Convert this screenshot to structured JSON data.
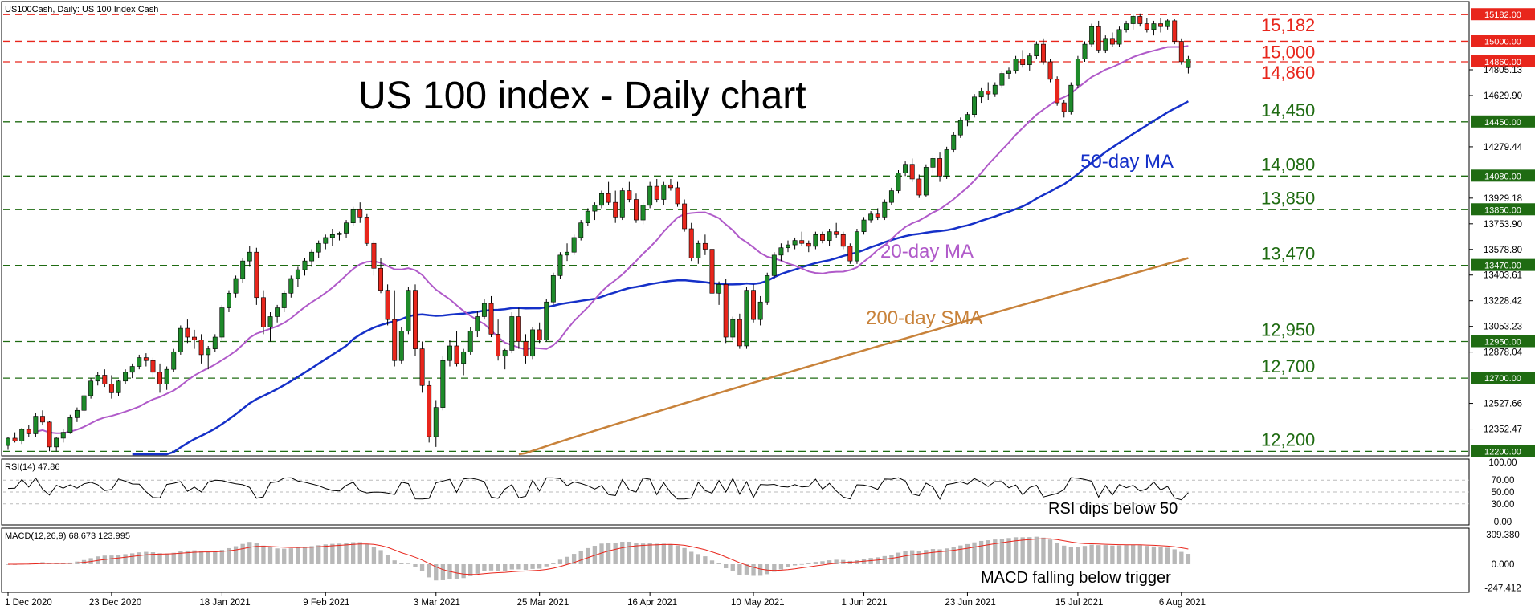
{
  "header": {
    "main": "US100Cash, Daily:  US 100 Index Cash",
    "rsi": "RSI(14) 47.86",
    "macd": "MACD(12,26,9) 68.673 123.995"
  },
  "chart_data": {
    "type": "candlestick",
    "title": "US 100 index - Daily chart",
    "x_ticks": [
      "1 Dec 2020",
      "23 Dec 2020",
      "18 Jan 2021",
      "9 Feb 2021",
      "3 Mar 2021",
      "25 Mar 2021",
      "16 Apr 2021",
      "10 May 2021",
      "1 Jun 2021",
      "23 Jun 2021",
      "15 Jul 2021",
      "6 Aug 2021"
    ],
    "y_ticks": [
      "15182.00",
      "15000.00",
      "14860.00",
      "14805.13",
      "14629.90",
      "14450.00",
      "14279.44",
      "14080.00",
      "13929.18",
      "13850.00",
      "13753.90",
      "13578.80",
      "13470.00",
      "13403.61",
      "13228.42",
      "13053.23",
      "12950.00",
      "12878.04",
      "12700.00",
      "12527.66",
      "12352.47",
      "12200.00"
    ],
    "ylim": [
      12180,
      15260
    ],
    "levels": [
      {
        "value": 15182,
        "label": "15,182",
        "box": "15182.00",
        "color": "#e8261c"
      },
      {
        "value": 15000,
        "label": "15,000",
        "box": "15000.00",
        "color": "#e8261c"
      },
      {
        "value": 14860,
        "label": "14,860",
        "box": "14860.00",
        "color": "#e8261c"
      },
      {
        "value": 14450,
        "label": "14,450",
        "box": "14450.00",
        "color": "#1f6b12"
      },
      {
        "value": 14080,
        "label": "14,080",
        "box": "14080.00",
        "color": "#1f6b12"
      },
      {
        "value": 13850,
        "label": "13,850",
        "box": "13850.00",
        "color": "#1f6b12"
      },
      {
        "value": 13470,
        "label": "13,470",
        "box": "13470.00",
        "color": "#1f6b12"
      },
      {
        "value": 12950,
        "label": "12,950",
        "box": "12950.00",
        "color": "#1f6b12"
      },
      {
        "value": 12700,
        "label": "12,700",
        "box": "12700.00",
        "color": "#1f6b12"
      },
      {
        "value": 12200,
        "label": "12,200",
        "box": "12200.00",
        "color": "#1f6b12"
      }
    ],
    "annotations": [
      {
        "text": "50-day MA",
        "color": "#1530c8"
      },
      {
        "text": "20-day MA",
        "color": "#b05ac9"
      },
      {
        "text": "200-day SMA",
        "color": "#c8823a"
      }
    ],
    "candles": [
      [
        12240,
        12300,
        12210,
        12290
      ],
      [
        12290,
        12330,
        12260,
        12270
      ],
      [
        12270,
        12360,
        12250,
        12350
      ],
      [
        12350,
        12380,
        12300,
        12320
      ],
      [
        12320,
        12460,
        12300,
        12440
      ],
      [
        12440,
        12480,
        12380,
        12400
      ],
      [
        12400,
        12410,
        12200,
        12230
      ],
      [
        12230,
        12300,
        12200,
        12290
      ],
      [
        12290,
        12350,
        12260,
        12330
      ],
      [
        12330,
        12450,
        12320,
        12430
      ],
      [
        12430,
        12500,
        12400,
        12480
      ],
      [
        12480,
        12600,
        12460,
        12580
      ],
      [
        12580,
        12700,
        12560,
        12680
      ],
      [
        12680,
        12740,
        12650,
        12720
      ],
      [
        12720,
        12760,
        12640,
        12660
      ],
      [
        12660,
        12720,
        12560,
        12600
      ],
      [
        12600,
        12690,
        12580,
        12680
      ],
      [
        12680,
        12760,
        12660,
        12740
      ],
      [
        12740,
        12800,
        12700,
        12780
      ],
      [
        12780,
        12860,
        12760,
        12840
      ],
      [
        12840,
        12870,
        12780,
        12820
      ],
      [
        12820,
        12840,
        12700,
        12740
      ],
      [
        12740,
        12800,
        12600,
        12660
      ],
      [
        12660,
        12780,
        12620,
        12760
      ],
      [
        12760,
        12900,
        12740,
        12880
      ],
      [
        12880,
        13060,
        12860,
        13040
      ],
      [
        13040,
        13100,
        12940,
        12980
      ],
      [
        12980,
        13030,
        12900,
        12960
      ],
      [
        12960,
        13000,
        12800,
        12860
      ],
      [
        12860,
        12920,
        12760,
        12900
      ],
      [
        12900,
        13000,
        12880,
        12980
      ],
      [
        12980,
        13200,
        12960,
        13180
      ],
      [
        13180,
        13300,
        13150,
        13280
      ],
      [
        13280,
        13400,
        13250,
        13380
      ],
      [
        13380,
        13520,
        13350,
        13500
      ],
      [
        13500,
        13600,
        13460,
        13560
      ],
      [
        13560,
        13590,
        13200,
        13250
      ],
      [
        13250,
        13300,
        13000,
        13050
      ],
      [
        13050,
        13150,
        12950,
        13120
      ],
      [
        13120,
        13200,
        13080,
        13180
      ],
      [
        13180,
        13300,
        13150,
        13280
      ],
      [
        13280,
        13400,
        13250,
        13380
      ],
      [
        13380,
        13460,
        13320,
        13440
      ],
      [
        13440,
        13520,
        13400,
        13500
      ],
      [
        13500,
        13580,
        13460,
        13560
      ],
      [
        13560,
        13640,
        13520,
        13620
      ],
      [
        13620,
        13680,
        13580,
        13660
      ],
      [
        13660,
        13720,
        13600,
        13680
      ],
      [
        13680,
        13700,
        13640,
        13690
      ],
      [
        13690,
        13780,
        13660,
        13760
      ],
      [
        13760,
        13870,
        13740,
        13850
      ],
      [
        13850,
        13900,
        13760,
        13800
      ],
      [
        13800,
        13820,
        13600,
        13620
      ],
      [
        13620,
        13640,
        13400,
        13450
      ],
      [
        13450,
        13520,
        13280,
        13300
      ],
      [
        13300,
        13340,
        13060,
        13100
      ],
      [
        13100,
        13300,
        12780,
        12820
      ],
      [
        12820,
        13050,
        12800,
        13020
      ],
      [
        13020,
        13320,
        13000,
        13300
      ],
      [
        13300,
        13340,
        12850,
        12900
      ],
      [
        12900,
        12950,
        12600,
        12650
      ],
      [
        12650,
        12680,
        12260,
        12300
      ],
      [
        12300,
        12550,
        12230,
        12500
      ],
      [
        12500,
        12850,
        12480,
        12820
      ],
      [
        12820,
        12960,
        12780,
        12920
      ],
      [
        12920,
        13020,
        12780,
        12800
      ],
      [
        12800,
        12900,
        12720,
        12880
      ],
      [
        12880,
        13050,
        12860,
        13020
      ],
      [
        13020,
        13160,
        12980,
        13120
      ],
      [
        13120,
        13240,
        13100,
        13210
      ],
      [
        13210,
        13260,
        12980,
        13000
      ],
      [
        13000,
        13100,
        12820,
        12850
      ],
      [
        12850,
        12900,
        12760,
        12890
      ],
      [
        12890,
        13150,
        12870,
        13120
      ],
      [
        13120,
        13180,
        12900,
        12950
      ],
      [
        12950,
        13000,
        12800,
        12850
      ],
      [
        12850,
        13050,
        12830,
        13030
      ],
      [
        13030,
        13080,
        12940,
        12960
      ],
      [
        12960,
        13240,
        12950,
        13220
      ],
      [
        13220,
        13420,
        13200,
        13400
      ],
      [
        13400,
        13560,
        13380,
        13540
      ],
      [
        13540,
        13620,
        13500,
        13560
      ],
      [
        13560,
        13680,
        13540,
        13660
      ],
      [
        13660,
        13780,
        13640,
        13760
      ],
      [
        13760,
        13860,
        13740,
        13840
      ],
      [
        13840,
        13900,
        13780,
        13880
      ],
      [
        13880,
        13980,
        13860,
        13960
      ],
      [
        13960,
        14040,
        13880,
        13900
      ],
      [
        13900,
        13980,
        13760,
        13800
      ],
      [
        13800,
        14000,
        13780,
        13980
      ],
      [
        13980,
        14040,
        13900,
        13920
      ],
      [
        13920,
        13960,
        13760,
        13780
      ],
      [
        13780,
        13900,
        13750,
        13880
      ],
      [
        13880,
        14040,
        13860,
        14010
      ],
      [
        14010,
        14060,
        13900,
        13920
      ],
      [
        13920,
        14040,
        13880,
        14020
      ],
      [
        14020,
        14060,
        13980,
        14000
      ],
      [
        14000,
        14040,
        13870,
        13890
      ],
      [
        13890,
        13920,
        13700,
        13720
      ],
      [
        13720,
        13760,
        13500,
        13520
      ],
      [
        13520,
        13640,
        13480,
        13620
      ],
      [
        13620,
        13680,
        13540,
        13580
      ],
      [
        13580,
        13600,
        13260,
        13280
      ],
      [
        13280,
        13360,
        13200,
        13340
      ],
      [
        13340,
        13380,
        12940,
        12980
      ],
      [
        12980,
        13120,
        12960,
        13100
      ],
      [
        13100,
        13140,
        12900,
        12920
      ],
      [
        12920,
        13320,
        12900,
        13300
      ],
      [
        13300,
        13340,
        13080,
        13100
      ],
      [
        13100,
        13260,
        13060,
        13220
      ],
      [
        13220,
        13420,
        13200,
        13400
      ],
      [
        13400,
        13560,
        13380,
        13540
      ],
      [
        13540,
        13620,
        13500,
        13590
      ],
      [
        13590,
        13640,
        13560,
        13610
      ],
      [
        13610,
        13660,
        13580,
        13640
      ],
      [
        13640,
        13700,
        13600,
        13620
      ],
      [
        13620,
        13640,
        13560,
        13600
      ],
      [
        13600,
        13700,
        13580,
        13680
      ],
      [
        13680,
        13700,
        13620,
        13640
      ],
      [
        13640,
        13720,
        13600,
        13700
      ],
      [
        13700,
        13760,
        13660,
        13680
      ],
      [
        13680,
        13700,
        13580,
        13600
      ],
      [
        13600,
        13620,
        13480,
        13500
      ],
      [
        13500,
        13720,
        13480,
        13700
      ],
      [
        13700,
        13800,
        13680,
        13780
      ],
      [
        13780,
        13840,
        13760,
        13820
      ],
      [
        13820,
        13860,
        13780,
        13800
      ],
      [
        13800,
        13920,
        13780,
        13900
      ],
      [
        13900,
        14000,
        13880,
        13980
      ],
      [
        13980,
        14120,
        13960,
        14100
      ],
      [
        14100,
        14180,
        14080,
        14160
      ],
      [
        14160,
        14200,
        14040,
        14060
      ],
      [
        14060,
        14090,
        13930,
        13950
      ],
      [
        13950,
        14160,
        13940,
        14140
      ],
      [
        14140,
        14220,
        14100,
        14200
      ],
      [
        14200,
        14240,
        14040,
        14080
      ],
      [
        14080,
        14280,
        14060,
        14260
      ],
      [
        14260,
        14380,
        14240,
        14360
      ],
      [
        14360,
        14480,
        14340,
        14460
      ],
      [
        14460,
        14520,
        14420,
        14500
      ],
      [
        14500,
        14640,
        14480,
        14620
      ],
      [
        14620,
        14680,
        14580,
        14660
      ],
      [
        14660,
        14720,
        14600,
        14640
      ],
      [
        14640,
        14720,
        14620,
        14700
      ],
      [
        14700,
        14800,
        14680,
        14780
      ],
      [
        14780,
        14820,
        14740,
        14800
      ],
      [
        14800,
        14900,
        14780,
        14880
      ],
      [
        14880,
        14940,
        14820,
        14840
      ],
      [
        14840,
        14920,
        14800,
        14900
      ],
      [
        14900,
        15000,
        14880,
        14980
      ],
      [
        14980,
        15020,
        14840,
        14860
      ],
      [
        14860,
        14880,
        14720,
        14740
      ],
      [
        14740,
        14760,
        14560,
        14580
      ],
      [
        14580,
        14600,
        14480,
        14520
      ],
      [
        14520,
        14720,
        14500,
        14700
      ],
      [
        14700,
        14900,
        14680,
        14880
      ],
      [
        14880,
        15000,
        14860,
        14980
      ],
      [
        14980,
        15120,
        14960,
        15100
      ],
      [
        15100,
        15140,
        14920,
        14940
      ],
      [
        14940,
        15040,
        14920,
        15020
      ],
      [
        15020,
        15060,
        14960,
        14980
      ],
      [
        14980,
        15100,
        14960,
        15080
      ],
      [
        15080,
        15140,
        15060,
        15120
      ],
      [
        15120,
        15180,
        15080,
        15170
      ],
      [
        15170,
        15190,
        15100,
        15120
      ],
      [
        15120,
        15160,
        15060,
        15080
      ],
      [
        15080,
        15140,
        15040,
        15120
      ],
      [
        15120,
        15160,
        15060,
        15100
      ],
      [
        15100,
        15150,
        15080,
        15140
      ],
      [
        15140,
        15150,
        14980,
        15000
      ],
      [
        15000,
        15020,
        14840,
        14860
      ],
      [
        14820,
        14900,
        14780,
        14880
      ]
    ]
  }
}
